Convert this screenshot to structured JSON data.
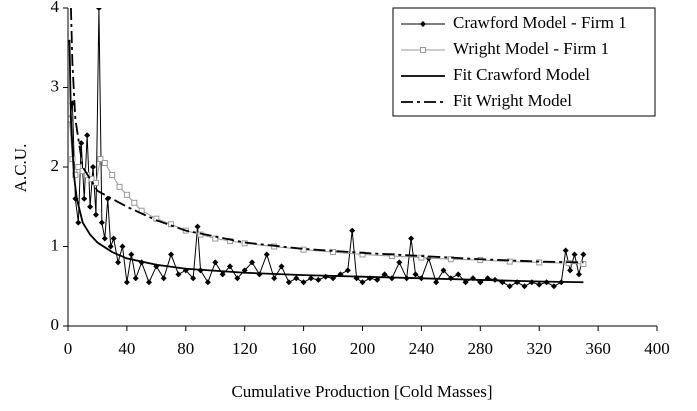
{
  "chart_data": {
    "type": "line",
    "xlabel": "Cumulative Production [Cold Masses]",
    "ylabel": "A.C.U.",
    "xlim": [
      0,
      400
    ],
    "xticks": [
      0,
      40,
      80,
      120,
      160,
      200,
      240,
      280,
      320,
      360,
      400
    ],
    "ylim": [
      0,
      4
    ],
    "yticks": [
      0,
      1,
      2,
      3,
      4
    ],
    "grid": false,
    "legend": "upper right",
    "series": [
      {
        "name": "Crawford Model - Firm 1",
        "color": "#000000",
        "marker": "diamond",
        "dash": "solid",
        "x": [
          1,
          3,
          5,
          7,
          9,
          11,
          13,
          15,
          17,
          19,
          21,
          23,
          25,
          27,
          29,
          31,
          34,
          37,
          40,
          43,
          46,
          50,
          55,
          60,
          65,
          70,
          75,
          80,
          85,
          88,
          90,
          95,
          100,
          105,
          110,
          115,
          120,
          125,
          130,
          135,
          140,
          145,
          150,
          155,
          160,
          165,
          170,
          175,
          180,
          185,
          190,
          193,
          196,
          200,
          205,
          210,
          215,
          220,
          225,
          230,
          233,
          236,
          240,
          245,
          250,
          255,
          260,
          265,
          270,
          275,
          280,
          285,
          290,
          295,
          300,
          305,
          310,
          315,
          320,
          325,
          330,
          335,
          338,
          341,
          344,
          347,
          350
        ],
        "values": [
          2.6,
          2.8,
          1.6,
          1.3,
          2.3,
          1.6,
          2.4,
          1.5,
          2.0,
          1.4,
          4.0,
          1.3,
          1.1,
          1.6,
          1.0,
          1.1,
          0.8,
          1.0,
          0.55,
          0.9,
          0.6,
          0.8,
          0.55,
          0.75,
          0.6,
          0.9,
          0.65,
          0.7,
          0.6,
          1.25,
          0.7,
          0.55,
          0.8,
          0.65,
          0.75,
          0.6,
          0.7,
          0.8,
          0.65,
          0.9,
          0.6,
          0.75,
          0.55,
          0.6,
          0.55,
          0.6,
          0.58,
          0.62,
          0.6,
          0.65,
          0.7,
          1.2,
          0.6,
          0.55,
          0.6,
          0.58,
          0.65,
          0.6,
          0.8,
          0.6,
          1.1,
          0.65,
          0.6,
          0.85,
          0.55,
          0.7,
          0.6,
          0.65,
          0.55,
          0.6,
          0.55,
          0.6,
          0.58,
          0.55,
          0.5,
          0.55,
          0.5,
          0.55,
          0.52,
          0.55,
          0.5,
          0.55,
          0.95,
          0.7,
          0.9,
          0.65,
          0.9
        ]
      },
      {
        "name": "Wright Model - Firm 1",
        "color": "#999999",
        "marker": "square",
        "dash": "solid",
        "x": [
          1,
          3,
          5,
          7,
          10,
          13,
          16,
          19,
          22,
          25,
          30,
          35,
          40,
          45,
          50,
          60,
          70,
          80,
          90,
          100,
          110,
          120,
          140,
          160,
          180,
          200,
          220,
          240,
          260,
          280,
          300,
          320,
          340,
          350
        ],
        "values": [
          2.6,
          2.1,
          1.9,
          2.0,
          1.95,
          1.9,
          1.85,
          1.8,
          2.1,
          2.05,
          1.9,
          1.75,
          1.65,
          1.55,
          1.45,
          1.35,
          1.28,
          1.2,
          1.15,
          1.1,
          1.07,
          1.04,
          1.0,
          0.96,
          0.93,
          0.9,
          0.88,
          0.86,
          0.84,
          0.83,
          0.81,
          0.8,
          0.79,
          0.78
        ]
      },
      {
        "name": "Fit Crawford Model",
        "color": "#000000",
        "marker": null,
        "dash": "solid",
        "x": [
          1,
          2,
          4,
          6,
          10,
          15,
          20,
          30,
          40,
          60,
          80,
          120,
          160,
          200,
          240,
          280,
          320,
          350
        ],
        "values": [
          3.6,
          2.6,
          1.9,
          1.6,
          1.3,
          1.15,
          1.05,
          0.93,
          0.85,
          0.77,
          0.72,
          0.67,
          0.64,
          0.62,
          0.6,
          0.58,
          0.56,
          0.55
        ]
      },
      {
        "name": "Fit Wright Model",
        "color": "#000000",
        "marker": null,
        "dash": "dashdot",
        "x": [
          2,
          3,
          5,
          10,
          20,
          30,
          40,
          60,
          80,
          120,
          160,
          200,
          240,
          280,
          320,
          350
        ],
        "values": [
          4.0,
          3.3,
          2.6,
          2.0,
          1.7,
          1.6,
          1.5,
          1.33,
          1.2,
          1.05,
          0.97,
          0.92,
          0.88,
          0.84,
          0.81,
          0.8
        ]
      }
    ]
  }
}
